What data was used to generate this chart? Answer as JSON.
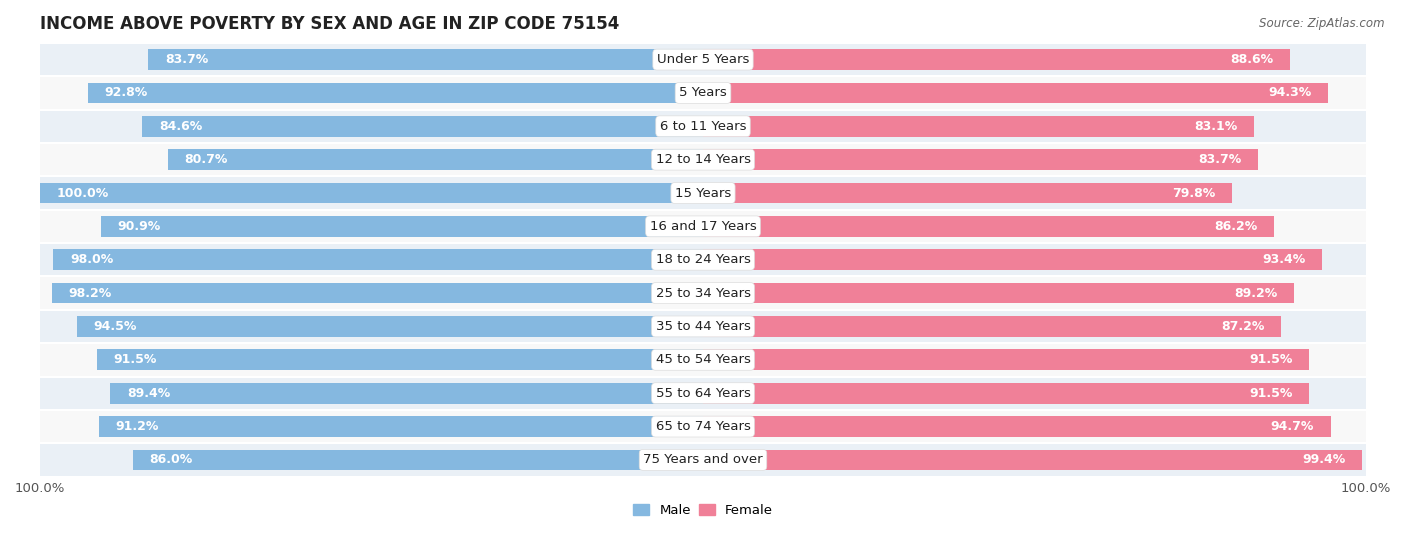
{
  "title": "INCOME ABOVE POVERTY BY SEX AND AGE IN ZIP CODE 75154",
  "source": "Source: ZipAtlas.com",
  "categories": [
    "Under 5 Years",
    "5 Years",
    "6 to 11 Years",
    "12 to 14 Years",
    "15 Years",
    "16 and 17 Years",
    "18 to 24 Years",
    "25 to 34 Years",
    "35 to 44 Years",
    "45 to 54 Years",
    "55 to 64 Years",
    "65 to 74 Years",
    "75 Years and over"
  ],
  "male_values": [
    83.7,
    92.8,
    84.6,
    80.7,
    100.0,
    90.9,
    98.0,
    98.2,
    94.5,
    91.5,
    89.4,
    91.2,
    86.0
  ],
  "female_values": [
    88.6,
    94.3,
    83.1,
    83.7,
    79.8,
    86.2,
    93.4,
    89.2,
    87.2,
    91.5,
    91.5,
    94.7,
    99.4
  ],
  "male_color": "#85b8e0",
  "male_color_light": "#c5ddf0",
  "female_color": "#f08098",
  "female_color_light": "#f8c0cc",
  "bg_color_odd": "#eaf0f6",
  "bg_color_even": "#f8f8f8",
  "title_fontsize": 12,
  "label_fontsize": 9.5,
  "value_fontsize": 9,
  "legend_fontsize": 9.5,
  "source_fontsize": 8.5,
  "bar_height": 0.62
}
